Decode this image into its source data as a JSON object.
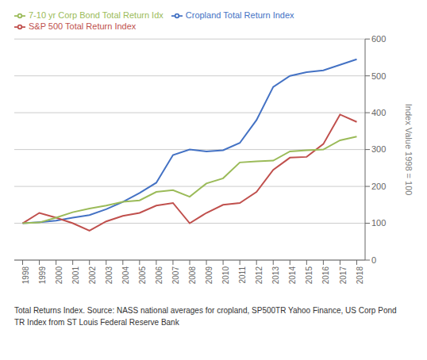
{
  "chart_data": {
    "type": "line",
    "x": [
      1998,
      1999,
      2000,
      2001,
      2002,
      2003,
      2004,
      2005,
      2006,
      2007,
      2008,
      2009,
      2010,
      2011,
      2012,
      2013,
      2014,
      2015,
      2016,
      2017,
      2018
    ],
    "series": [
      {
        "name": "Cropland Total Return Index",
        "color": "#4472C4",
        "values": [
          100,
          103,
          107,
          115,
          122,
          138,
          158,
          182,
          210,
          285,
          300,
          295,
          298,
          318,
          380,
          470,
          500,
          510,
          515,
          530,
          545
        ]
      },
      {
        "name": "S&P 500 Total Return Index",
        "color": "#C0504D",
        "values": [
          100,
          128,
          115,
          100,
          80,
          105,
          120,
          128,
          148,
          155,
          100,
          128,
          150,
          155,
          185,
          245,
          278,
          280,
          315,
          395,
          375
        ]
      },
      {
        "name": "7-10 yr Corp Bond Total Return Idx",
        "color": "#9BBB59",
        "values": [
          100,
          102,
          115,
          130,
          140,
          148,
          158,
          162,
          185,
          190,
          172,
          208,
          222,
          265,
          268,
          270,
          295,
          298,
          300,
          325,
          335
        ]
      }
    ],
    "y_label": "Index Value 1998 = 100",
    "xlim": [
      1997.5,
      2018.5
    ],
    "xticks": [
      1998,
      1999,
      2000,
      2001,
      2002,
      2003,
      2004,
      2005,
      2006,
      2007,
      2008,
      2009,
      2010,
      2011,
      2012,
      2013,
      2014,
      2015,
      2016,
      2017,
      2018
    ],
    "ylim": [
      0,
      600
    ],
    "yticks": [
      0,
      100,
      200,
      300,
      400,
      500,
      600
    ],
    "grid": true,
    "legend": "top",
    "annotations": [
      "Total Returns Index. Source: NASS national averages for cropland, SP500TR Yahoo Finance, US Corp Pond",
      "TR Index from ST Louis Federal Reserve Bank"
    ]
  }
}
